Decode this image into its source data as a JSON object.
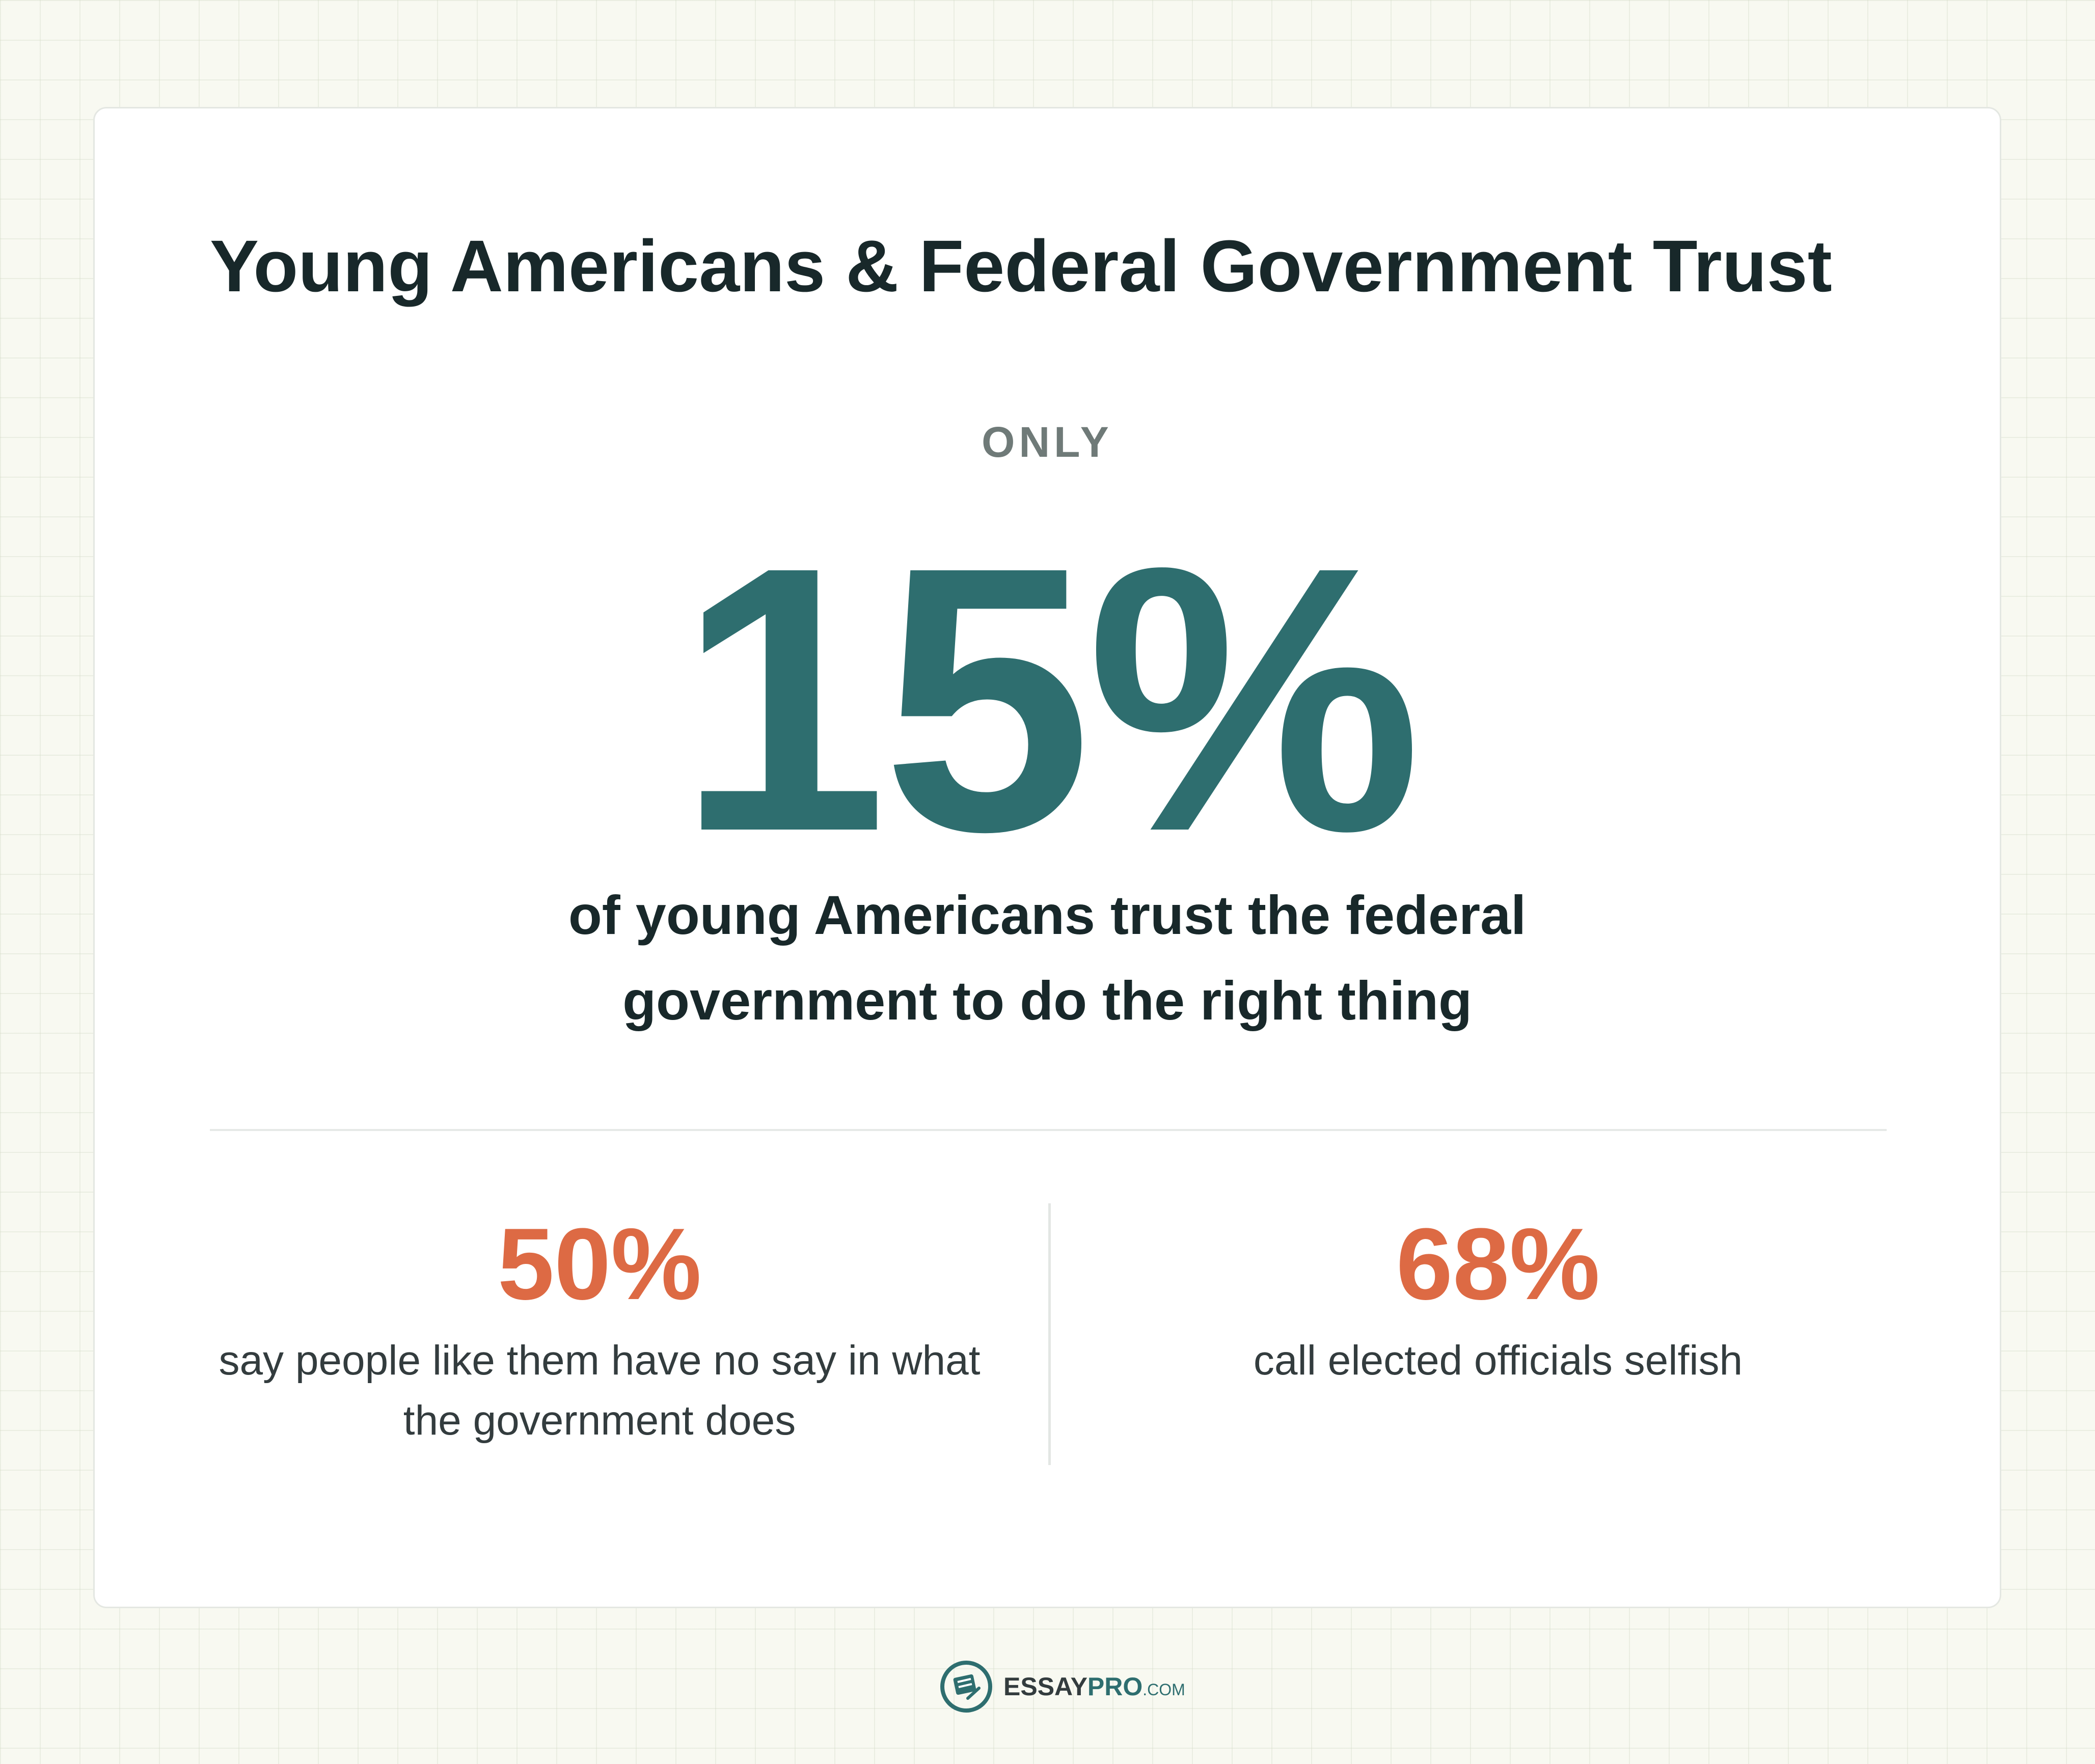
{
  "title": "Young Americans & Federal Government Trust",
  "headline": {
    "prefix": "ONLY",
    "value": "15%",
    "caption_line1": "of young Americans trust the federal",
    "caption_line2": "government to do the right thing"
  },
  "stats": [
    {
      "value": "50%",
      "caption_line1": "say people like them have no say in what",
      "caption_line2": "the government does"
    },
    {
      "value": "68%",
      "caption_line1": "call elected officials selfish",
      "caption_line2": ""
    }
  ],
  "logo": {
    "brand_main": "ESSAY",
    "brand_accent": "PRO",
    "brand_suffix": ".COM",
    "icon": "document-pen-icon"
  },
  "colors": {
    "accent_teal": "#2e6e6f",
    "accent_orange": "#dd6a44",
    "text_dark": "#18282a",
    "background": "#f8f9f1"
  }
}
